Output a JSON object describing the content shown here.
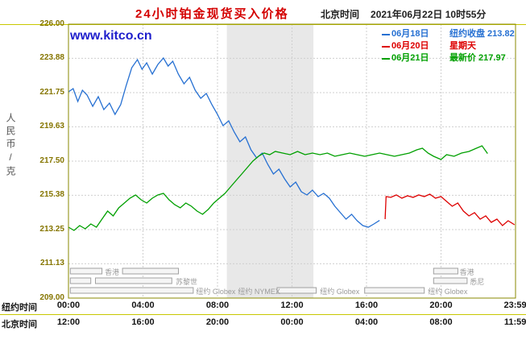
{
  "header": {
    "title": "24小时铂金现货买入价格",
    "timezone_label": "北京时间",
    "datetime": "2021年06月22日 10时55分"
  },
  "watermark": "www.kitco.cn",
  "legend": [
    {
      "date": "06月18日",
      "label": "纽约收盘 213.82",
      "color": "#2670d2"
    },
    {
      "date": "06月20日",
      "label": "星期天",
      "color": "#dd0000"
    },
    {
      "date": "06月21日",
      "label": "最新价 217.97",
      "color": "#00a000"
    }
  ],
  "y_axis": {
    "unit_label": "人民币/克"
  },
  "x_axis": {
    "ny_label": "纽约时间",
    "bj_label": "北京时间",
    "ny_ticks": [
      "00:00",
      "04:00",
      "08:00",
      "12:00",
      "16:00",
      "20:00",
      "23:59"
    ],
    "bj_ticks": [
      "12:00",
      "16:00",
      "20:00",
      "00:00",
      "04:00",
      "08:00",
      "11:59"
    ]
  },
  "sessions": [
    {
      "row": 1,
      "label": "香港",
      "label_h": 1.95,
      "bars": [
        [
          0.1,
          1.8
        ],
        [
          2.9,
          5.9
        ]
      ]
    },
    {
      "row": 2,
      "label": "苏黎世",
      "label_h": 5.75,
      "bars": [
        [
          0.1,
          1.2
        ],
        [
          1.45,
          5.55
        ]
      ]
    },
    {
      "row": 3,
      "label": "纽约 Globex",
      "label_h": 6.85,
      "bars": [
        [
          0.1,
          6.7
        ]
      ]
    },
    {
      "row": 3,
      "label": "纽约 NYMEX",
      "label_h": 9.1,
      "bars": [
        [
          11.2,
          13.3
        ]
      ]
    },
    {
      "row": 3,
      "label": "纽约 Globex",
      "label_h": 13.5,
      "bars": []
    },
    {
      "row": 3,
      "label": "纽约 Globex",
      "label_h": 19.3,
      "bars": [
        [
          15.9,
          19.1
        ]
      ]
    },
    {
      "row": 1,
      "label": "香港",
      "label_h": 21.0,
      "bars": [
        [
          19.6,
          20.9
        ]
      ]
    },
    {
      "row": 2,
      "label": "悉尼",
      "label_h": 21.55,
      "bars": [
        [
          19.6,
          21.4
        ]
      ]
    }
  ],
  "chart_data": {
    "type": "line",
    "title": "24小时铂金现货买入价格",
    "ylabel": "人民币/克",
    "ylim": [
      209.0,
      226.0
    ],
    "y_ticks": [
      226.0,
      223.88,
      221.75,
      219.63,
      217.5,
      215.38,
      213.25,
      211.13,
      209.0
    ],
    "x_axis_hours_ny": [
      0,
      24
    ],
    "x_tick_hours": [
      0,
      4,
      8,
      12,
      16,
      20,
      23.983
    ],
    "highlight_band_hours": [
      8.5,
      13.15
    ],
    "grid": true,
    "legend_position": "top-right",
    "series": [
      {
        "name": "06月18日 纽约收盘",
        "ny_close": 213.82,
        "color": "#2670d2",
        "points": [
          [
            0,
            221.8
          ],
          [
            0.25,
            222.0
          ],
          [
            0.5,
            221.2
          ],
          [
            0.75,
            221.9
          ],
          [
            1.0,
            221.6
          ],
          [
            1.3,
            220.9
          ],
          [
            1.6,
            221.5
          ],
          [
            1.9,
            220.7
          ],
          [
            2.2,
            221.1
          ],
          [
            2.5,
            220.4
          ],
          [
            2.8,
            221.0
          ],
          [
            3.1,
            222.2
          ],
          [
            3.4,
            223.3
          ],
          [
            3.7,
            223.8
          ],
          [
            3.95,
            223.2
          ],
          [
            4.2,
            223.6
          ],
          [
            4.5,
            222.9
          ],
          [
            4.8,
            223.5
          ],
          [
            5.1,
            223.9
          ],
          [
            5.35,
            223.4
          ],
          [
            5.6,
            223.7
          ],
          [
            5.9,
            222.9
          ],
          [
            6.2,
            222.3
          ],
          [
            6.5,
            222.7
          ],
          [
            6.8,
            221.9
          ],
          [
            7.1,
            221.4
          ],
          [
            7.4,
            221.7
          ],
          [
            7.7,
            221.0
          ],
          [
            8.0,
            220.4
          ],
          [
            8.3,
            219.7
          ],
          [
            8.6,
            220.0
          ],
          [
            8.9,
            219.3
          ],
          [
            9.2,
            218.7
          ],
          [
            9.5,
            219.0
          ],
          [
            9.8,
            218.2
          ],
          [
            10.1,
            217.7
          ],
          [
            10.4,
            218.0
          ],
          [
            10.7,
            217.3
          ],
          [
            11.0,
            216.7
          ],
          [
            11.3,
            217.0
          ],
          [
            11.6,
            216.4
          ],
          [
            11.9,
            215.9
          ],
          [
            12.2,
            216.2
          ],
          [
            12.5,
            215.6
          ],
          [
            12.8,
            215.4
          ],
          [
            13.1,
            215.7
          ],
          [
            13.4,
            215.3
          ],
          [
            13.7,
            215.5
          ],
          [
            14.0,
            215.2
          ],
          [
            14.3,
            214.7
          ],
          [
            14.6,
            214.3
          ],
          [
            14.9,
            213.9
          ],
          [
            15.2,
            214.2
          ],
          [
            15.5,
            213.8
          ],
          [
            15.8,
            213.5
          ],
          [
            16.1,
            213.4
          ],
          [
            16.4,
            213.6
          ],
          [
            16.7,
            213.82
          ]
        ]
      },
      {
        "name": "06月20日 星期天",
        "color": "#dd0000",
        "points": [
          [
            17.0,
            213.9
          ],
          [
            17.05,
            215.3
          ],
          [
            17.3,
            215.25
          ],
          [
            17.6,
            215.4
          ],
          [
            17.9,
            215.2
          ],
          [
            18.2,
            215.35
          ],
          [
            18.5,
            215.25
          ],
          [
            18.8,
            215.4
          ],
          [
            19.1,
            215.3
          ],
          [
            19.4,
            215.45
          ],
          [
            19.7,
            215.2
          ],
          [
            20.0,
            215.3
          ],
          [
            20.3,
            215.0
          ],
          [
            20.6,
            214.7
          ],
          [
            20.9,
            214.9
          ],
          [
            21.2,
            214.4
          ],
          [
            21.5,
            214.1
          ],
          [
            21.8,
            214.3
          ],
          [
            22.1,
            213.9
          ],
          [
            22.4,
            214.1
          ],
          [
            22.7,
            213.7
          ],
          [
            23.0,
            213.9
          ],
          [
            23.3,
            213.5
          ],
          [
            23.6,
            213.8
          ],
          [
            23.95,
            213.55
          ]
        ]
      },
      {
        "name": "06月21日 最新价",
        "latest": 217.97,
        "color": "#00a000",
        "points": [
          [
            0,
            213.4
          ],
          [
            0.3,
            213.2
          ],
          [
            0.6,
            213.5
          ],
          [
            0.9,
            213.3
          ],
          [
            1.2,
            213.6
          ],
          [
            1.5,
            213.4
          ],
          [
            1.8,
            213.9
          ],
          [
            2.1,
            214.4
          ],
          [
            2.4,
            214.1
          ],
          [
            2.7,
            214.6
          ],
          [
            3.0,
            214.9
          ],
          [
            3.3,
            215.2
          ],
          [
            3.6,
            215.4
          ],
          [
            3.9,
            215.1
          ],
          [
            4.2,
            214.9
          ],
          [
            4.5,
            215.2
          ],
          [
            4.8,
            215.4
          ],
          [
            5.1,
            215.5
          ],
          [
            5.4,
            215.1
          ],
          [
            5.7,
            214.8
          ],
          [
            6.0,
            214.6
          ],
          [
            6.3,
            214.9
          ],
          [
            6.6,
            214.7
          ],
          [
            6.9,
            214.4
          ],
          [
            7.2,
            214.2
          ],
          [
            7.5,
            214.5
          ],
          [
            7.8,
            214.9
          ],
          [
            8.1,
            215.2
          ],
          [
            8.4,
            215.5
          ],
          [
            8.7,
            215.9
          ],
          [
            9.0,
            216.3
          ],
          [
            9.3,
            216.7
          ],
          [
            9.6,
            217.1
          ],
          [
            9.9,
            217.5
          ],
          [
            10.2,
            217.8
          ],
          [
            10.5,
            218.0
          ],
          [
            10.8,
            217.9
          ],
          [
            11.1,
            218.1
          ],
          [
            11.5,
            218.0
          ],
          [
            11.9,
            217.9
          ],
          [
            12.3,
            218.1
          ],
          [
            12.7,
            217.9
          ],
          [
            13.1,
            218.0
          ],
          [
            13.5,
            217.9
          ],
          [
            13.9,
            218.0
          ],
          [
            14.3,
            217.8
          ],
          [
            14.7,
            217.9
          ],
          [
            15.1,
            218.0
          ],
          [
            15.5,
            217.9
          ],
          [
            15.9,
            217.8
          ],
          [
            16.3,
            217.9
          ],
          [
            16.7,
            218.0
          ],
          [
            17.1,
            217.9
          ],
          [
            17.5,
            217.8
          ],
          [
            17.9,
            217.9
          ],
          [
            18.3,
            218.0
          ],
          [
            18.7,
            218.2
          ],
          [
            19.0,
            218.3
          ],
          [
            19.3,
            218.0
          ],
          [
            19.6,
            217.8
          ],
          [
            20.0,
            217.6
          ],
          [
            20.3,
            217.9
          ],
          [
            20.7,
            217.8
          ],
          [
            21.1,
            218.0
          ],
          [
            21.5,
            218.1
          ],
          [
            21.9,
            218.3
          ],
          [
            22.2,
            218.45
          ],
          [
            22.5,
            217.97
          ]
        ]
      }
    ]
  }
}
